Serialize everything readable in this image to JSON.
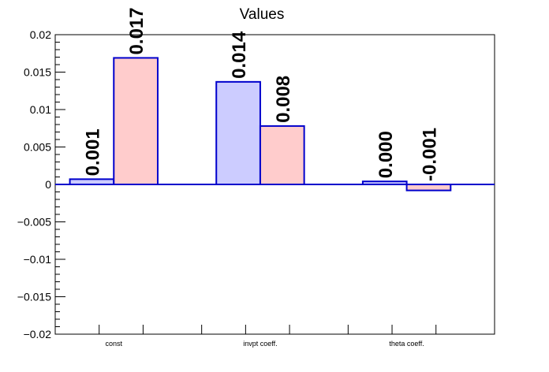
{
  "chart_data": {
    "type": "bar",
    "title": "Values",
    "xlabel": "",
    "ylabel": "",
    "categories": [
      "const",
      "invpt coeff.",
      "theta coeff."
    ],
    "series": [
      {
        "values": [
          0.0007,
          0.0137,
          0.0004
        ],
        "labels": [
          "0.001",
          "0.014",
          "0.000"
        ],
        "fill": "#ccccff",
        "stroke": "#0000cc"
      },
      {
        "values": [
          0.0169,
          0.0078,
          -0.0008
        ],
        "labels": [
          "0.017",
          "0.008",
          "-0.001"
        ],
        "fill": "#ffcccc",
        "stroke": "#0000cc"
      }
    ],
    "ylim": [
      -0.02,
      0.02
    ],
    "yticks": [
      -0.02,
      -0.015,
      -0.01,
      -0.005,
      0,
      0.005,
      0.01,
      0.015,
      0.02
    ],
    "ytick_labels": [
      "−0.02",
      "−0.015",
      "−0.01",
      "−0.005",
      "0",
      "0.005",
      "0.01",
      "0.015",
      "0.02"
    ],
    "grid": false,
    "legend": "none",
    "colors": {
      "axis": "#000000",
      "zero_line": "#0000cc"
    }
  }
}
